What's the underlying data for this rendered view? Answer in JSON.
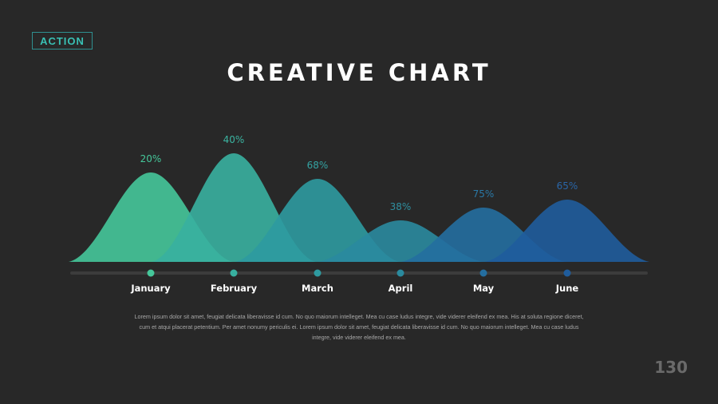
{
  "slide": {
    "logo_text": "ACTION",
    "title": "CREATIVE CHART",
    "description": "Lorem ipsum dolor sit amet, feugiat delicata liberavisse id cum. No quo maiorum intelleget. Mea cu case ludus integre, vide viderer eleifend ex mea. His at soluta regione diceret, cum et atqui placerat petentium. Per amet nonumy periculis ei. Lorem ipsum dolor sit amet, feugiat delicata liberavisse id cum. No quo maiorum intelleget. Mea cu case ludus integre, vide viderer eleifend ex mea.",
    "page_number": "130"
  },
  "chart_data": {
    "type": "area",
    "categories": [
      "January",
      "February",
      "March",
      "April",
      "May",
      "June"
    ],
    "values": [
      20,
      40,
      68,
      38,
      75,
      65
    ],
    "value_labels": [
      "20%",
      "40%",
      "68%",
      "38%",
      "75%",
      "65%"
    ],
    "colors": [
      "#45c79a",
      "#38b0a0",
      "#2e9aa0",
      "#2a8a9e",
      "#246ea0",
      "#1f5c9c"
    ],
    "label_colors": [
      "#45c79a",
      "#3bb5a2",
      "#34a3a3",
      "#2f8fa0",
      "#2a78a6",
      "#2a66a8"
    ],
    "ylim": [
      0,
      100
    ],
    "grid": false,
    "legend": "none"
  }
}
